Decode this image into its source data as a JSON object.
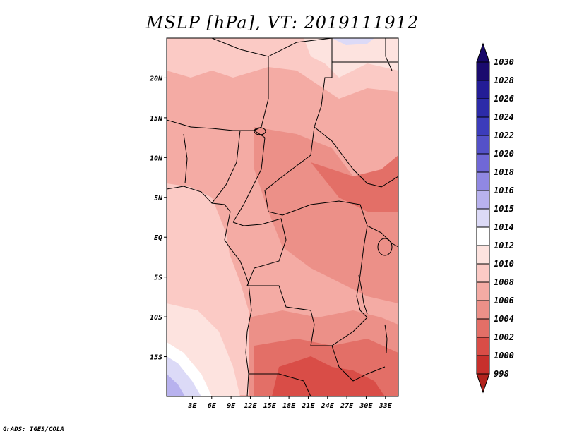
{
  "title": "MSLP [hPa], VT: 2019111912",
  "credit": "GrADS: IGES/COLA",
  "map": {
    "region": "Central Africa",
    "lat_range": [
      -20,
      25
    ],
    "lon_range": [
      -1,
      35
    ],
    "lat_ticks": [
      {
        "value": 20,
        "label": "20N"
      },
      {
        "value": 15,
        "label": "15N"
      },
      {
        "value": 10,
        "label": "10N"
      },
      {
        "value": 5,
        "label": "5N"
      },
      {
        "value": 0,
        "label": "EQ"
      },
      {
        "value": -5,
        "label": "5S"
      },
      {
        "value": -10,
        "label": "10S"
      },
      {
        "value": -15,
        "label": "15S"
      }
    ],
    "lon_ticks": [
      {
        "value": 3,
        "label": "3E"
      },
      {
        "value": 6,
        "label": "6E"
      },
      {
        "value": 9,
        "label": "9E"
      },
      {
        "value": 12,
        "label": "12E"
      },
      {
        "value": 15,
        "label": "15E"
      },
      {
        "value": 18,
        "label": "18E"
      },
      {
        "value": 21,
        "label": "21E"
      },
      {
        "value": 24,
        "label": "24E"
      },
      {
        "value": 27,
        "label": "27E"
      },
      {
        "value": 30,
        "label": "30E"
      },
      {
        "value": 33,
        "label": "33E"
      }
    ]
  },
  "colorbar": {
    "levels": [
      {
        "label": "1030",
        "color": "#1a0a6e"
      },
      {
        "label": "1028",
        "color": "#231c96"
      },
      {
        "label": "1026",
        "color": "#2c2ba8"
      },
      {
        "label": "1024",
        "color": "#3c3cbb"
      },
      {
        "label": "1022",
        "color": "#5451c8"
      },
      {
        "label": "1020",
        "color": "#7068d6"
      },
      {
        "label": "1018",
        "color": "#9088e2"
      },
      {
        "label": "1016",
        "color": "#b8b2ee"
      },
      {
        "label": "1015",
        "color": "#dcdaf7"
      },
      {
        "label": "1014",
        "color": "#ffffff"
      },
      {
        "label": "1012",
        "color": "#fde3df"
      },
      {
        "label": "1010",
        "color": "#fbcac5"
      },
      {
        "label": "1008",
        "color": "#f4aba4"
      },
      {
        "label": "1006",
        "color": "#ec9088"
      },
      {
        "label": "1004",
        "color": "#e36f67"
      },
      {
        "label": "1002",
        "color": "#d94d47"
      },
      {
        "label": "1000",
        "color": "#c7302c"
      },
      {
        "label": "998",
        "color": "#a51c1a"
      }
    ],
    "top_color": "#18086a",
    "bottom_color": "#b3231d"
  }
}
